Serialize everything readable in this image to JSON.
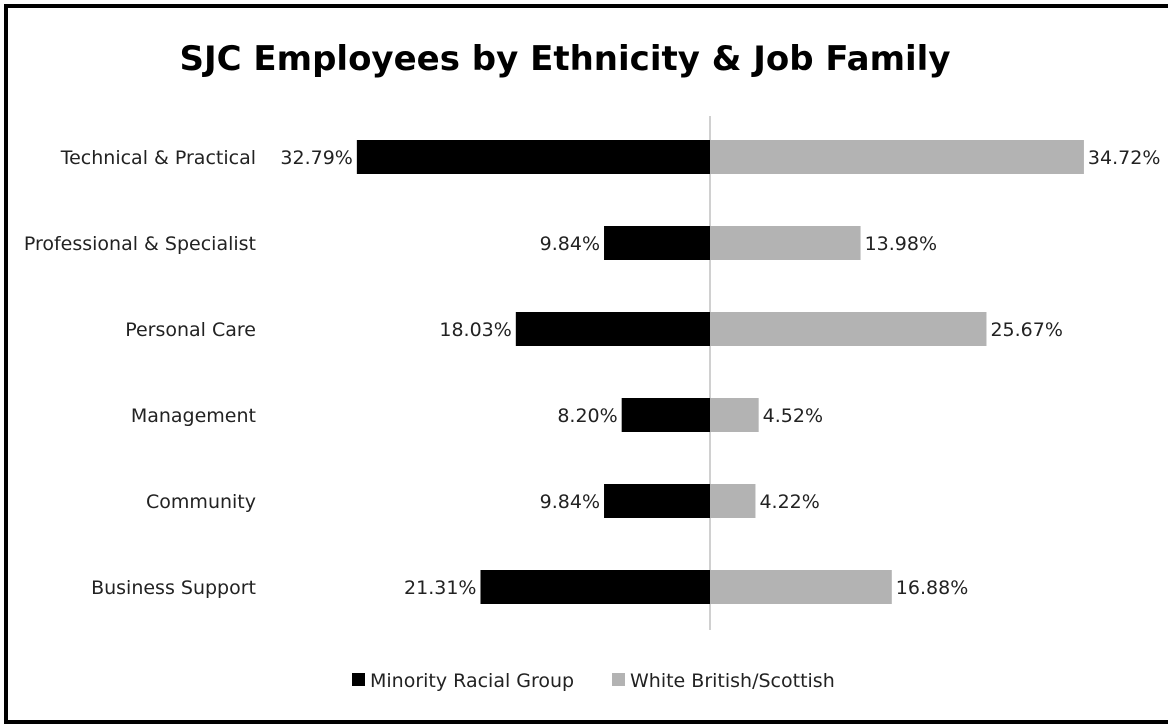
{
  "chart_data": {
    "type": "bar",
    "orientation": "horizontal-diverging",
    "title": "SJC Employees by Ethnicity & Job Family",
    "categories": [
      "Technical & Practical",
      "Professional & Specialist",
      "Personal Care",
      "Management",
      "Community",
      "Business Support"
    ],
    "series": [
      {
        "name": "Minority Racial Group",
        "color": "#000000",
        "values": [
          32.79,
          9.84,
          18.03,
          8.2,
          9.84,
          21.31
        ],
        "labels": [
          "32.79%",
          "9.84%",
          "18.03%",
          "8.20%",
          "9.84%",
          "21.31%"
        ]
      },
      {
        "name": "White British/Scottish",
        "color": "#b3b3b3",
        "values": [
          34.72,
          13.98,
          25.67,
          4.52,
          4.22,
          16.88
        ],
        "labels": [
          "34.72%",
          "13.98%",
          "25.67%",
          "4.52%",
          "4.22%",
          "16.88%"
        ]
      }
    ],
    "xlim": [
      -35,
      35
    ],
    "legend_position": "bottom",
    "grid": false
  }
}
